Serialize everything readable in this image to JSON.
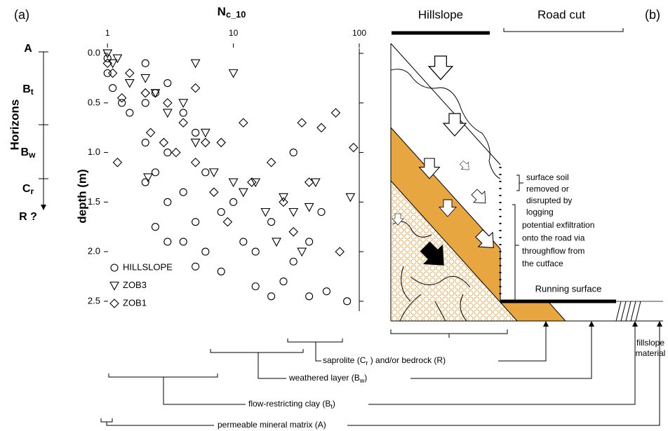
{
  "panel_labels": {
    "a": "(a)",
    "b": "(b)"
  },
  "horizons": {
    "title": "Horizons",
    "items": [
      {
        "label": "A"
      },
      {
        "label": "B",
        "sub": "t"
      },
      {
        "label": "B",
        "sub": "w"
      },
      {
        "label": "C",
        "sub": "r"
      },
      {
        "label": "R ?"
      }
    ]
  },
  "chart_data": {
    "type": "scatter",
    "x_label": {
      "main": "N",
      "sub": "c_10"
    },
    "y_label": "depth (m)",
    "x_log": true,
    "y_inverted": true,
    "xlim": [
      0.9,
      100
    ],
    "xticks": [
      1,
      10,
      100
    ],
    "ylim": [
      -0.05,
      2.6
    ],
    "yticks": [
      {
        "value": 0,
        "label": "0.0"
      },
      {
        "value": 0.5,
        "label": "0.5"
      },
      {
        "value": 1,
        "label": "1.0"
      },
      {
        "value": 1.5,
        "label": "1.5"
      },
      {
        "value": 2,
        "label": "2.0"
      },
      {
        "value": 2.5,
        "label": "2.5"
      }
    ],
    "grid": false,
    "legend": "lower left",
    "series": [
      {
        "name": "HILLSLOPE",
        "marker": "circle",
        "color": "#000000",
        "x": [
          1,
          1,
          1.1,
          1.3,
          1.5,
          2,
          2,
          2,
          2,
          2.4,
          2.4,
          2.4,
          3,
          3,
          3,
          3,
          4,
          4,
          4,
          5,
          5,
          5,
          6,
          6,
          8,
          8,
          10,
          12,
          15,
          15,
          20,
          20,
          25,
          30,
          30,
          40,
          40,
          50,
          55,
          80
        ],
        "values": [
          0.05,
          0.2,
          0.35,
          0.5,
          0.6,
          0.1,
          0.5,
          0.9,
          1.3,
          0.4,
          1.2,
          1.75,
          0.3,
          1.0,
          1.5,
          1.9,
          0.6,
          1.4,
          1.9,
          0.8,
          1.7,
          2.15,
          1.2,
          2.0,
          1.6,
          2.2,
          1.5,
          1.9,
          2.0,
          2.35,
          1.7,
          2.45,
          2.3,
          1.0,
          2.1,
          1.9,
          2.45,
          1.6,
          2.4,
          2.5
        ]
      },
      {
        "name": "ZOB3",
        "marker": "triangle",
        "color": "#000000",
        "x": [
          1,
          1.1,
          1.2,
          1.5,
          2,
          2.4,
          3,
          4,
          5,
          5,
          6,
          7,
          10,
          10,
          12,
          15,
          18,
          22,
          25,
          30,
          35,
          40,
          45,
          85,
          2.1
        ],
        "values": [
          0.0,
          0.1,
          0.05,
          0.3,
          0.25,
          0.4,
          0.6,
          0.5,
          0.1,
          0.9,
          0.8,
          1.2,
          0.2,
          1.3,
          1.4,
          1.3,
          1.6,
          1.9,
          1.45,
          1.6,
          2.0,
          1.55,
          1.3,
          1.45,
          1.25
        ]
      },
      {
        "name": "ZOB1",
        "marker": "diamond",
        "color": "#000000",
        "x": [
          1,
          1.1,
          1.3,
          1.5,
          2,
          2.2,
          2.8,
          3,
          3.5,
          4,
          5,
          5,
          6,
          7,
          8,
          9,
          12,
          14,
          20,
          25,
          30,
          35,
          40,
          50,
          65,
          70,
          90,
          1.2
        ],
        "values": [
          0.1,
          0.2,
          0.45,
          0.2,
          0.4,
          0.8,
          0.9,
          0.5,
          1.0,
          0.7,
          0.35,
          1.1,
          0.9,
          1.4,
          0.9,
          1.7,
          0.7,
          1.3,
          1.1,
          1.5,
          1.8,
          0.7,
          1.3,
          0.75,
          0.6,
          2.0,
          0.95,
          1.1
        ]
      }
    ]
  },
  "diagram": {
    "hillslope": "Hillslope",
    "road_cut": "Road cut",
    "surface_soil": [
      "surface soil",
      "removed or",
      "disrupted by",
      "logging"
    ],
    "exfiltration": [
      "potential exfiltration",
      "onto the road via",
      "throughflow from",
      "the cutface"
    ],
    "running_surface": "Running surface",
    "fillslope": [
      "fillslope",
      "material"
    ],
    "layers": [
      {
        "text": "saprolite (C",
        "sub": "r",
        "rest": " ) and/or bedrock (R)"
      },
      {
        "text": "weathered layer (B",
        "sub": "w",
        "rest": ")"
      },
      {
        "text": "flow-restricting clay (B",
        "sub": "t",
        "rest": ")"
      },
      {
        "text": "permeable mineral matrix (A)"
      }
    ]
  }
}
